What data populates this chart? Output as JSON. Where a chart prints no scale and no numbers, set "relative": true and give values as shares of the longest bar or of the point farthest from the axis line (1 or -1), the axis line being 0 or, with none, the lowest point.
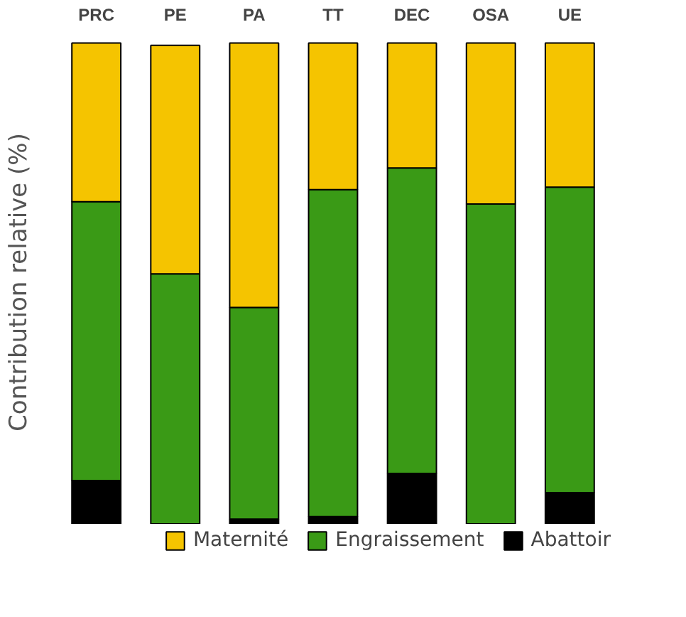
{
  "chart_data": {
    "type": "bar",
    "stacked": true,
    "relative": true,
    "ylabel": "Contribution relative (%)",
    "categories": [
      "PRC",
      "PE",
      "PA",
      "TT",
      "DEC",
      "OSA",
      "UE"
    ],
    "legend": "bottom",
    "grid": false,
    "series": [
      {
        "name": "Abattoir",
        "color": "#000000",
        "values": [
          0.09,
          null,
          0.01,
          0.015,
          0.105,
          0,
          0.065
        ]
      },
      {
        "name": "Engraissement",
        "color": "#3a9a16",
        "values": [
          0.58,
          0.52,
          0.44,
          0.68,
          0.635,
          0.665,
          0.635
        ]
      },
      {
        "name": "Maternité",
        "color": "#f5c400",
        "values": [
          0.33,
          0.475,
          0.55,
          0.305,
          0.26,
          0.335,
          0.3
        ]
      }
    ]
  }
}
